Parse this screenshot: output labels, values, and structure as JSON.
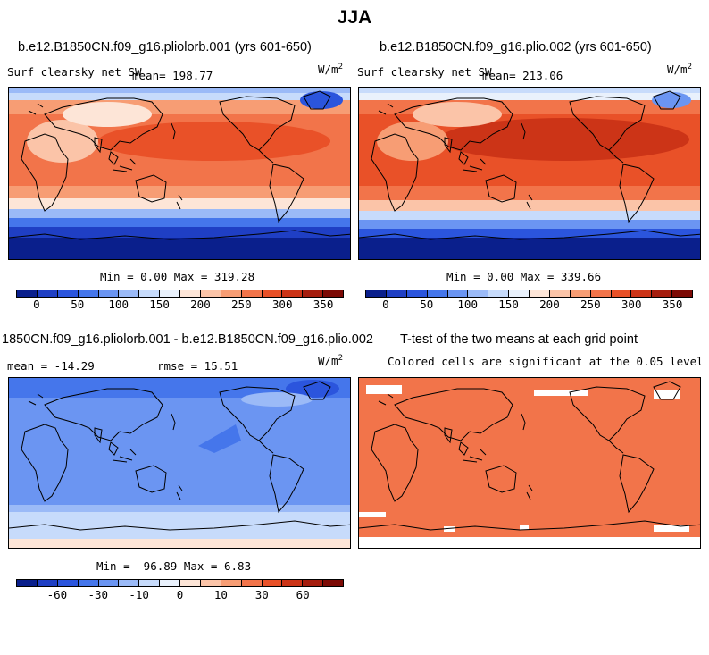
{
  "page_title": "JJA",
  "panels": [
    {
      "title": "b.e12.B1850CN.f09_g16.pliolorb.001 (yrs 601-650)",
      "left_label": "Surf clearsky net SW",
      "stat_label": "mean= 198.77",
      "units": "W/m",
      "units_exp": "2",
      "minmax": "Min =   0.00 Max = 319.28"
    },
    {
      "title": "b.e12.B1850CN.f09_g16.plio.002 (yrs 601-650)",
      "left_label": "Surf clearsky net SW",
      "stat_label": "mean= 213.06",
      "units": "W/m",
      "units_exp": "2",
      "minmax": "Min =   0.00 Max = 339.66"
    },
    {
      "title": "1850CN.f09_g16.pliolorb.001 - b.e12.B1850CN.f09_g16.plio.002",
      "left_label": "mean = -14.29",
      "stat_label": "rmse =  15.51",
      "units": "W/m",
      "units_exp": "2",
      "minmax": "Min = -96.89 Max =   6.83"
    },
    {
      "title": "T-test of the two means at each grid point",
      "subtitle": "Colored cells are significant at the 0.05 level"
    }
  ],
  "colorbars": {
    "absolute": {
      "colors": [
        "#0a1f8c",
        "#1f3fc4",
        "#2b55dd",
        "#4576eb",
        "#6b95f2",
        "#9bbaf7",
        "#c7dbfb",
        "#e9f1fc",
        "#fde5d7",
        "#fbc4a8",
        "#f79d74",
        "#f2744a",
        "#e95128",
        "#cc3417",
        "#a51d0e",
        "#7c0a05"
      ],
      "tick_labels": [
        "0",
        "50",
        "100",
        "150",
        "200",
        "250",
        "300",
        "350"
      ]
    },
    "difference": {
      "colors": [
        "#0a1f8c",
        "#1f3fc4",
        "#2b55dd",
        "#4576eb",
        "#6b95f2",
        "#9bbaf7",
        "#c7dbfb",
        "#e9f1fc",
        "#fde5d7",
        "#fbc4a8",
        "#f79d74",
        "#f2744a",
        "#e95128",
        "#cc3417",
        "#a51d0e",
        "#7c0a05"
      ],
      "tick_labels": [
        "-60",
        "-30",
        "-10",
        "0",
        "10",
        "30",
        "60"
      ]
    }
  },
  "chart_data": [
    {
      "type": "heatmap",
      "title": "b.e12.B1850CN.f09_g16.pliolorb.001 (yrs 601-650)",
      "variable": "Surf clearsky net SW",
      "units": "W/m^2",
      "mean": 198.77,
      "min": 0.0,
      "max": 319.28,
      "contour_levels": [
        0,
        50,
        100,
        150,
        200,
        250,
        300,
        350
      ]
    },
    {
      "type": "heatmap",
      "title": "b.e12.B1850CN.f09_g16.plio.002 (yrs 601-650)",
      "variable": "Surf clearsky net SW",
      "units": "W/m^2",
      "mean": 213.06,
      "min": 0.0,
      "max": 339.66,
      "contour_levels": [
        0,
        50,
        100,
        150,
        200,
        250,
        300,
        350
      ]
    },
    {
      "type": "heatmap",
      "title": "1850CN.f09_g16.pliolorb.001 - b.e12.B1850CN.f09_g16.plio.002",
      "units": "W/m^2",
      "mean": -14.29,
      "rmse": 15.51,
      "min": -96.89,
      "max": 6.83,
      "contour_levels": [
        -60,
        -30,
        -10,
        0,
        10,
        30,
        60
      ]
    },
    {
      "type": "heatmap",
      "title": "T-test of the two means at each grid point",
      "subtitle": "Colored cells are significant at the 0.05 level",
      "significance_level": 0.05
    }
  ]
}
